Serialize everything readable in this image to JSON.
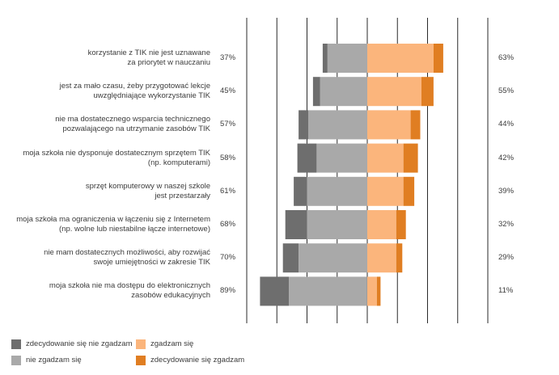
{
  "colors": {
    "strongly_disagree": "#6e6e6e",
    "disagree": "#a9a9a9",
    "agree": "#fbb57c",
    "strongly_agree": "#e07e22",
    "gridline": "#2a2a2a"
  },
  "chart_data": {
    "type": "bar",
    "orientation": "horizontal-diverging",
    "categories": [
      "korzystanie z TIK nie jest uznawane\nza priorytet w nauczaniu",
      "jest za mało czasu, żeby przygotować lekcje\nuwzględniające wykorzystanie TIK",
      "nie ma dostatecznego wsparcia technicznego\npozwalającego na utrzymanie zasobów TIK",
      "moja szkoła nie dysponuje dostatecznym sprzętem TIK\n(np. komputerami)",
      "sprzęt komputerowy w naszej szkole\njest przestarzały",
      "moja szkoła ma ograniczenia w łączeniu się z Internetem\n(np. wolne lub niestabilne łącze internetowe)",
      "nie mam dostatecznych możliwości, aby rozwijać\nswoje umiejętności w zakresie TIK",
      "moja szkoła nie ma dostępu do elektronicznych\nzasobów edukacyjnych"
    ],
    "left_totals": [
      "37%",
      "45%",
      "57%",
      "58%",
      "61%",
      "68%",
      "70%",
      "89%"
    ],
    "right_totals": [
      "63%",
      "55%",
      "44%",
      "42%",
      "39%",
      "32%",
      "29%",
      "11%"
    ],
    "series": [
      {
        "name": "zdecydowanie się nie zgadzam",
        "values": [
          4,
          6,
          8,
          16,
          11,
          18,
          13,
          24
        ]
      },
      {
        "name": "nie zgadzam się",
        "values": [
          33,
          39,
          49,
          42,
          50,
          50,
          57,
          65
        ]
      },
      {
        "name": "zgadzam się",
        "values": [
          55,
          45,
          36,
          30,
          30,
          24,
          24,
          8
        ]
      },
      {
        "name": "zdecydowanie się zgadzam",
        "values": [
          8,
          10,
          8,
          12,
          9,
          8,
          5,
          3
        ]
      }
    ],
    "xlim": [
      -90,
      100
    ],
    "grid": true,
    "legend_position": "bottom-left"
  },
  "legend": {
    "items": [
      {
        "label": "zdecydowanie się nie zgadzam",
        "color": "#6e6e6e"
      },
      {
        "label": "nie zgadzam się",
        "color": "#a9a9a9"
      },
      {
        "label": "zgadzam się",
        "color": "#fbb57c"
      },
      {
        "label": "zdecydowanie się zgadzam",
        "color": "#e07e22"
      }
    ]
  }
}
